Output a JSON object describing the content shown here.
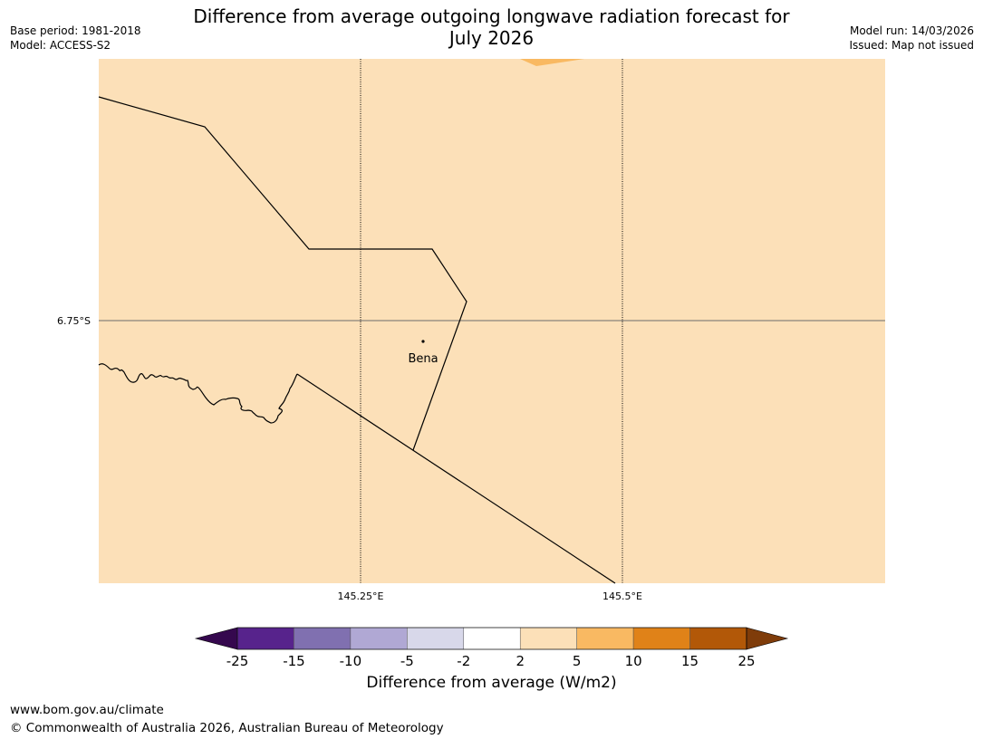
{
  "title_line1": "Difference from average outgoing longwave radiation forecast for",
  "title_line2": "July 2026",
  "meta_left": [
    "Base period: 1981-2018",
    "Model: ACCESS-S2"
  ],
  "meta_right": [
    "Model run: 14/03/2026",
    "Issued: Map not issued"
  ],
  "map": {
    "lat_label": "6.75°S",
    "lon_labels": [
      "145.25°E",
      "145.5°E"
    ],
    "place_label": "Bena",
    "background_color": "#fce0b8",
    "highlight_color": "#f9b962"
  },
  "colorbar": {
    "label": "Difference from average (W/m2)",
    "ticks": [
      "-25",
      "-15",
      "-10",
      "-5",
      "-2",
      "2",
      "5",
      "10",
      "15",
      "25"
    ],
    "colors": [
      "#57238c",
      "#8070b0",
      "#b0a8d4",
      "#d8d8ea",
      "#ffffff",
      "#fce0b8",
      "#f9b962",
      "#e08218",
      "#b25808"
    ],
    "under_color": "#35084e",
    "over_color": "#7f3c0a"
  },
  "footer": [
    "www.bom.gov.au/climate",
    "© Commonwealth of Australia 2026, Australian Bureau of Meteorology"
  ]
}
